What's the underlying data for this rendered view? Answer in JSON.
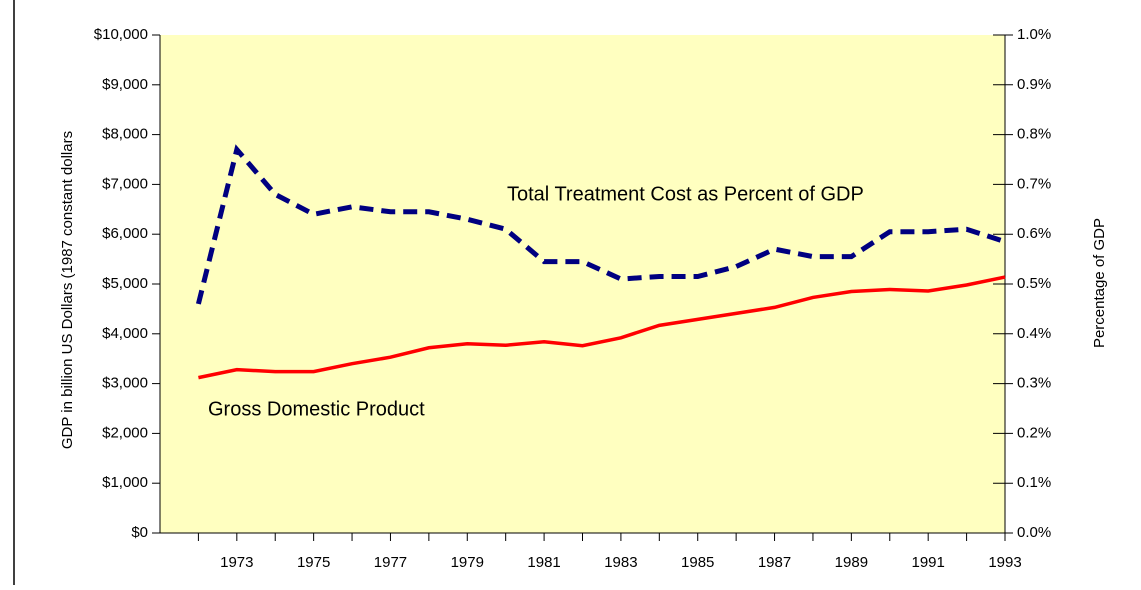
{
  "chart_data": {
    "type": "line",
    "ylabel": "GDP in billion US Dollars (1987 constant dollars",
    "y2label": "Percentage of GDP",
    "categories": [
      null,
      "1973",
      null,
      "1975",
      null,
      "1977",
      null,
      "1979",
      null,
      "1981",
      null,
      "1983",
      null,
      "1985",
      null,
      "1987",
      null,
      "1989",
      null,
      "1991",
      null,
      "1993"
    ],
    "series": [
      {
        "name": "Gross Domestic Product",
        "color": "#ff0000",
        "axis": "y",
        "values": [
          3120,
          3280,
          3240,
          3240,
          3400,
          3530,
          3720,
          3800,
          3770,
          3840,
          3760,
          3920,
          4170,
          4290,
          4410,
          4530,
          4730,
          4850,
          4890,
          4860,
          4980,
          5140
        ]
      },
      {
        "name": "Total Treatment Cost as Percent of GDP",
        "color": "#000080",
        "axis": "y2",
        "dashed": true,
        "values": [
          0.46,
          0.77,
          0.68,
          0.64,
          0.655,
          0.645,
          0.645,
          0.63,
          0.61,
          0.545,
          0.545,
          0.51,
          0.515,
          0.515,
          0.535,
          0.57,
          0.555,
          0.555,
          0.605,
          0.605,
          0.61,
          0.585
        ]
      }
    ],
    "ylim": [
      0,
      10000
    ],
    "yticks": [
      {
        "value": 0,
        "label": "$0"
      },
      {
        "value": 1000,
        "label": "$1,000"
      },
      {
        "value": 2000,
        "label": "$2,000"
      },
      {
        "value": 3000,
        "label": "$3,000"
      },
      {
        "value": 4000,
        "label": "$4,000"
      },
      {
        "value": 5000,
        "label": "$5,000"
      },
      {
        "value": 6000,
        "label": "$6,000"
      },
      {
        "value": 7000,
        "label": "$7,000"
      },
      {
        "value": 8000,
        "label": "$8,000"
      },
      {
        "value": 9000,
        "label": "$9,000"
      },
      {
        "value": 10000,
        "label": "$10,000"
      }
    ],
    "y2lim": [
      0,
      1
    ],
    "y2ticks": [
      {
        "value": 0,
        "label": "0.0%"
      },
      {
        "value": 0.1,
        "label": "0.1%"
      },
      {
        "value": 0.2,
        "label": "0.2%"
      },
      {
        "value": 0.3,
        "label": "0.3%"
      },
      {
        "value": 0.4,
        "label": "0.4%"
      },
      {
        "value": 0.5,
        "label": "0.5%"
      },
      {
        "value": 0.6,
        "label": "0.6%"
      },
      {
        "value": 0.7,
        "label": "0.7%"
      },
      {
        "value": 0.8,
        "label": "0.8%"
      },
      {
        "value": 0.9,
        "label": "0.9%"
      },
      {
        "value": 1,
        "label": "1.0%"
      }
    ],
    "background": "#ffffc0"
  }
}
